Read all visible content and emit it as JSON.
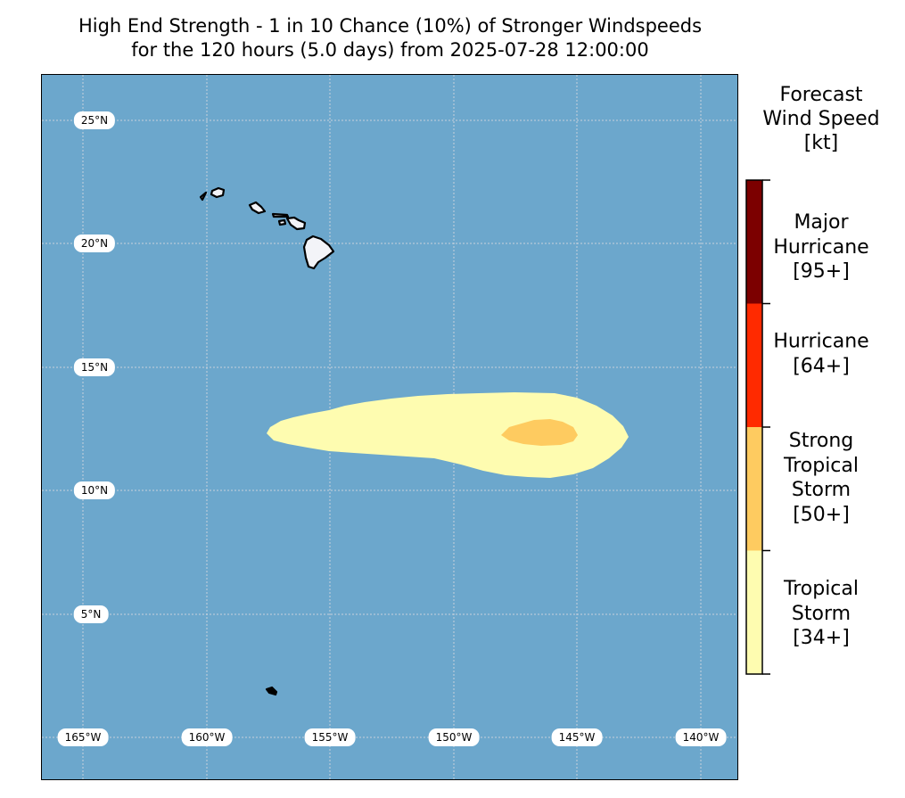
{
  "title": {
    "line1": "High End Strength - 1 in 10 Chance (10%) of Stronger Windspeeds",
    "line2": "for the 120 hours (5.0 days) from 2025-07-28 12:00:00"
  },
  "map": {
    "ocean_color": "#6ca7cc",
    "land_color": "#f3f4f8",
    "grid_color": "#c8d2dc",
    "lat_labels": [
      "25°N",
      "20°N",
      "15°N",
      "10°N",
      "5°N"
    ],
    "lon_labels": [
      "165°W",
      "160°W",
      "155°W",
      "150°W",
      "145°W",
      "140°W"
    ],
    "wind_areas": [
      {
        "category": "Tropical Storm [34+]",
        "color": "#fefcb0"
      },
      {
        "category": "Strong Tropical Storm [50+]",
        "color": "#fecb60"
      }
    ]
  },
  "legend": {
    "title_lines": [
      "Forecast",
      "Wind Speed",
      "[kt]"
    ],
    "categories": [
      {
        "lines": [
          "Major",
          "Hurricane",
          "[95+]"
        ],
        "color": "#7c0000"
      },
      {
        "lines": [
          "Hurricane",
          "[64+]"
        ],
        "color": "#ff2a00"
      },
      {
        "lines": [
          "Strong",
          "Tropical",
          "Storm",
          "[50+]"
        ],
        "color": "#fecb60"
      },
      {
        "lines": [
          "Tropical",
          "Storm",
          "[34+]"
        ],
        "color": "#fefcb0"
      }
    ]
  }
}
